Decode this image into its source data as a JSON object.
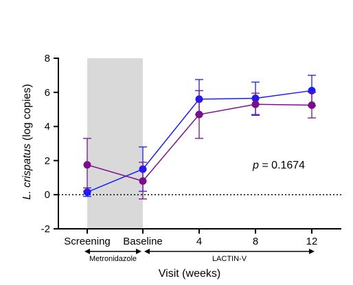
{
  "chart_data": {
    "type": "line",
    "xlabel": "Visit (weeks)",
    "ylabel_italic": "L. crispatus",
    "ylabel_rest": " (log copies)",
    "categories": [
      "Screening",
      "Baseline",
      "4",
      "8",
      "12"
    ],
    "ylim": [
      -2,
      8
    ],
    "yticks": [
      "-2",
      "0",
      "2",
      "4",
      "6",
      "8"
    ],
    "reference_line_y": 0,
    "shaded_range": [
      "Screening",
      "Baseline"
    ],
    "periods": [
      {
        "label": "Metronidazole",
        "from": "Screening",
        "to": "Baseline"
      },
      {
        "label": "LACTIN-V",
        "from": "Baseline",
        "to": "12"
      }
    ],
    "annotation": {
      "italic": "p",
      "text": " = 0.1674"
    },
    "series": [
      {
        "color": "#1a1aff",
        "values": [
          0.15,
          1.5,
          5.6,
          5.65,
          6.1
        ],
        "err_low": [
          -0.1,
          0.2,
          4.7,
          4.7,
          5.2
        ],
        "err_high": [
          0.4,
          2.8,
          6.75,
          6.6,
          7.0
        ]
      },
      {
        "color": "#7a0f8c",
        "values": [
          1.75,
          0.8,
          4.7,
          5.3,
          5.25
        ],
        "err_low": [
          0.2,
          -0.25,
          3.3,
          4.65,
          4.5
        ],
        "err_high": [
          3.3,
          1.9,
          6.1,
          5.95,
          6.0
        ]
      }
    ]
  }
}
